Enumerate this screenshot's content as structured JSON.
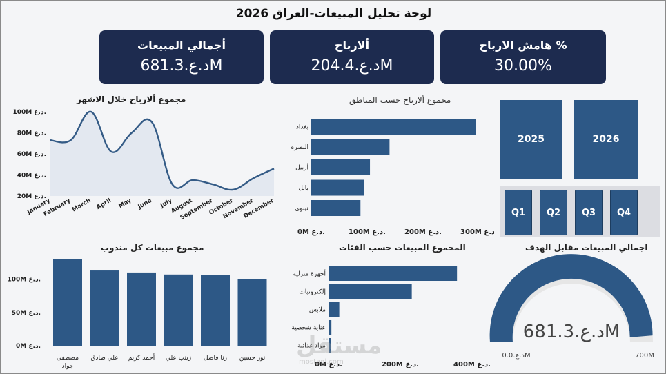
{
  "page": {
    "title": "لوحة تحليل المبيعات-العراق 2026"
  },
  "kpis": [
    {
      "label": "أجمالي المبيعات",
      "value": "د.ع.681.3M"
    },
    {
      "label": "ألارباح",
      "value": "د.ع.204.4M"
    },
    {
      "label": "هامش الارباح %",
      "value": "30.00%"
    }
  ],
  "filters": {
    "years": [
      "2025",
      "2026"
    ],
    "quarters": [
      "Q1",
      "Q2",
      "Q3",
      "Q4"
    ],
    "tile_color": "#2d5886"
  },
  "watermark": {
    "text": "مستقل",
    "sub": "mostaql.com"
  },
  "colors": {
    "bar": "#2d5886",
    "line": "#345b86",
    "area": "#e3e8f0",
    "kpi_bg": "#1d2b4f",
    "gauge_fill": "#2d5886",
    "gauge_rest": "#e6e6e6"
  },
  "chart_data": [
    {
      "id": "monthly_profit",
      "type": "area",
      "title": "مجموع ألارباح خلال الاشهر",
      "categories": [
        "January",
        "February",
        "March",
        "April",
        "May",
        "June",
        "July",
        "August",
        "September",
        "October",
        "November",
        "December"
      ],
      "values": [
        73,
        73,
        100,
        62,
        80,
        90,
        31,
        35,
        31,
        26,
        37,
        46
      ],
      "ylim": [
        20,
        100
      ],
      "yticks": [
        20,
        40,
        60,
        80,
        100
      ],
      "ytick_labels": [
        "20M د.ع.",
        "40M د.ع.",
        "60M د.ع.",
        "80M د.ع.",
        "100M د.ع."
      ]
    },
    {
      "id": "profit_by_region",
      "type": "bar",
      "orientation": "horizontal",
      "title": "مجموع ألارباح حسب المناطق",
      "categories": [
        "بغداد",
        "البصرة",
        "أربيل",
        "بابل",
        "نينوى"
      ],
      "values": [
        295,
        140,
        105,
        95,
        88
      ],
      "xlim": [
        0,
        300
      ],
      "xticks": [
        0,
        100,
        200,
        300
      ],
      "xtick_labels": [
        "0M د.ع.",
        "100M د.ع.",
        "200M د.ع.",
        "300M د.ع."
      ]
    },
    {
      "id": "sales_by_rep",
      "type": "bar",
      "title": "مجموع مبيعات كل مندوب",
      "categories": [
        "مصطفى جواد",
        "علي صادق",
        "أحمد كريم",
        "زينب علي",
        "رنا فاضل",
        "نور حسين"
      ],
      "values": [
        130,
        113,
        110,
        107,
        106,
        100
      ],
      "ylim": [
        0,
        140
      ],
      "yticks": [
        0,
        50,
        100
      ],
      "ytick_labels": [
        "0M د.ع.",
        "50M د.ع.",
        "100M د.ع."
      ]
    },
    {
      "id": "sales_by_category",
      "type": "bar",
      "orientation": "horizontal",
      "title": "المجموع المبيعات حسب الفئات",
      "categories": [
        "أجهزة منزلية",
        "إلكترونيات",
        "ملابس",
        "عناية شخصية",
        "مواد غذائية"
      ],
      "values": [
        358,
        232,
        30,
        8,
        6
      ],
      "xlim": [
        0,
        400
      ],
      "xticks": [
        0,
        200,
        400
      ],
      "xtick_labels": [
        "0M د.ع.",
        "200M د.ع.",
        "400M د.ع."
      ]
    },
    {
      "id": "sales_vs_target",
      "type": "gauge",
      "title": "اجمالي المبيعات مقابل الهدف",
      "value": 681.3,
      "min": 0,
      "max": 700,
      "value_label": "د.ع.681.3M",
      "min_label": "د.ع.0.0M",
      "max_label": "700M"
    }
  ]
}
